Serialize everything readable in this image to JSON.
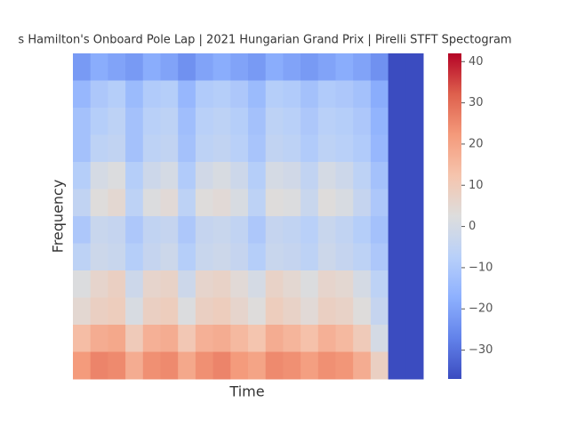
{
  "chart_data": {
    "type": "heatmap",
    "title": "s Hamilton's Onboard Pole Lap | 2021 Hungarian Grand Prix | Pirelli STFT Spectogram",
    "x_label": "Time",
    "y_label": "Frequency",
    "colormap": "coolwarm",
    "zlim": [
      -37,
      42
    ],
    "zticks": [
      {
        "value": -30,
        "label": "−30"
      },
      {
        "value": -20,
        "label": "−20"
      },
      {
        "value": -10,
        "label": "−10"
      },
      0,
      10,
      20,
      30,
      40
    ],
    "z": [
      [
        -22,
        -18,
        -20,
        -22,
        -18,
        -20,
        -24,
        -20,
        -18,
        -20,
        -22,
        -18,
        -20,
        -22,
        -20,
        -18,
        -20,
        -24,
        -37,
        -37
      ],
      [
        -15,
        -10,
        -8,
        -14,
        -9,
        -8,
        -15,
        -9,
        -8,
        -10,
        -14,
        -8,
        -9,
        -12,
        -9,
        -10,
        -12,
        -18,
        -37,
        -37
      ],
      [
        -12,
        -8,
        -6,
        -12,
        -7,
        -6,
        -13,
        -7,
        -6,
        -8,
        -12,
        -6,
        -7,
        -10,
        -7,
        -8,
        -10,
        -16,
        -37,
        -37
      ],
      [
        -12,
        -6,
        -5,
        -12,
        -6,
        -5,
        -12,
        -6,
        -5,
        -7,
        -11,
        -5,
        -6,
        -9,
        -6,
        -7,
        -9,
        -15,
        -37,
        -37
      ],
      [
        -8,
        0,
        2,
        -8,
        -2,
        0,
        -9,
        -1,
        1,
        -2,
        -8,
        0,
        -1,
        -5,
        0,
        -2,
        -6,
        -12,
        -37,
        -37
      ],
      [
        -5,
        3,
        5,
        -6,
        2,
        4,
        -6,
        3,
        4,
        1,
        -6,
        3,
        2,
        -3,
        3,
        1,
        -4,
        -10,
        -37,
        -37
      ],
      [
        -10,
        -3,
        -4,
        -10,
        -5,
        -4,
        -10,
        -4,
        -3,
        -5,
        -10,
        -4,
        -5,
        -7,
        -3,
        -5,
        -8,
        -12,
        -37,
        -37
      ],
      [
        -6,
        -2,
        -3,
        -8,
        -4,
        -2,
        -8,
        -3,
        -2,
        -4,
        -8,
        -3,
        -4,
        -6,
        -2,
        -4,
        -6,
        -10,
        -37,
        -37
      ],
      [
        2,
        6,
        8,
        -2,
        6,
        7,
        -2,
        6,
        7,
        4,
        0,
        7,
        5,
        2,
        6,
        5,
        0,
        -6,
        -37,
        -37
      ],
      [
        5,
        8,
        9,
        1,
        8,
        9,
        2,
        8,
        9,
        6,
        3,
        9,
        7,
        4,
        8,
        7,
        3,
        -4,
        -37,
        -37
      ],
      [
        14,
        18,
        19,
        10,
        17,
        18,
        11,
        17,
        18,
        15,
        12,
        18,
        16,
        13,
        17,
        15,
        10,
        0,
        -37,
        -37
      ],
      [
        22,
        26,
        25,
        18,
        24,
        25,
        19,
        24,
        26,
        22,
        20,
        25,
        24,
        21,
        24,
        23,
        18,
        8,
        -37,
        -37
      ]
    ]
  }
}
